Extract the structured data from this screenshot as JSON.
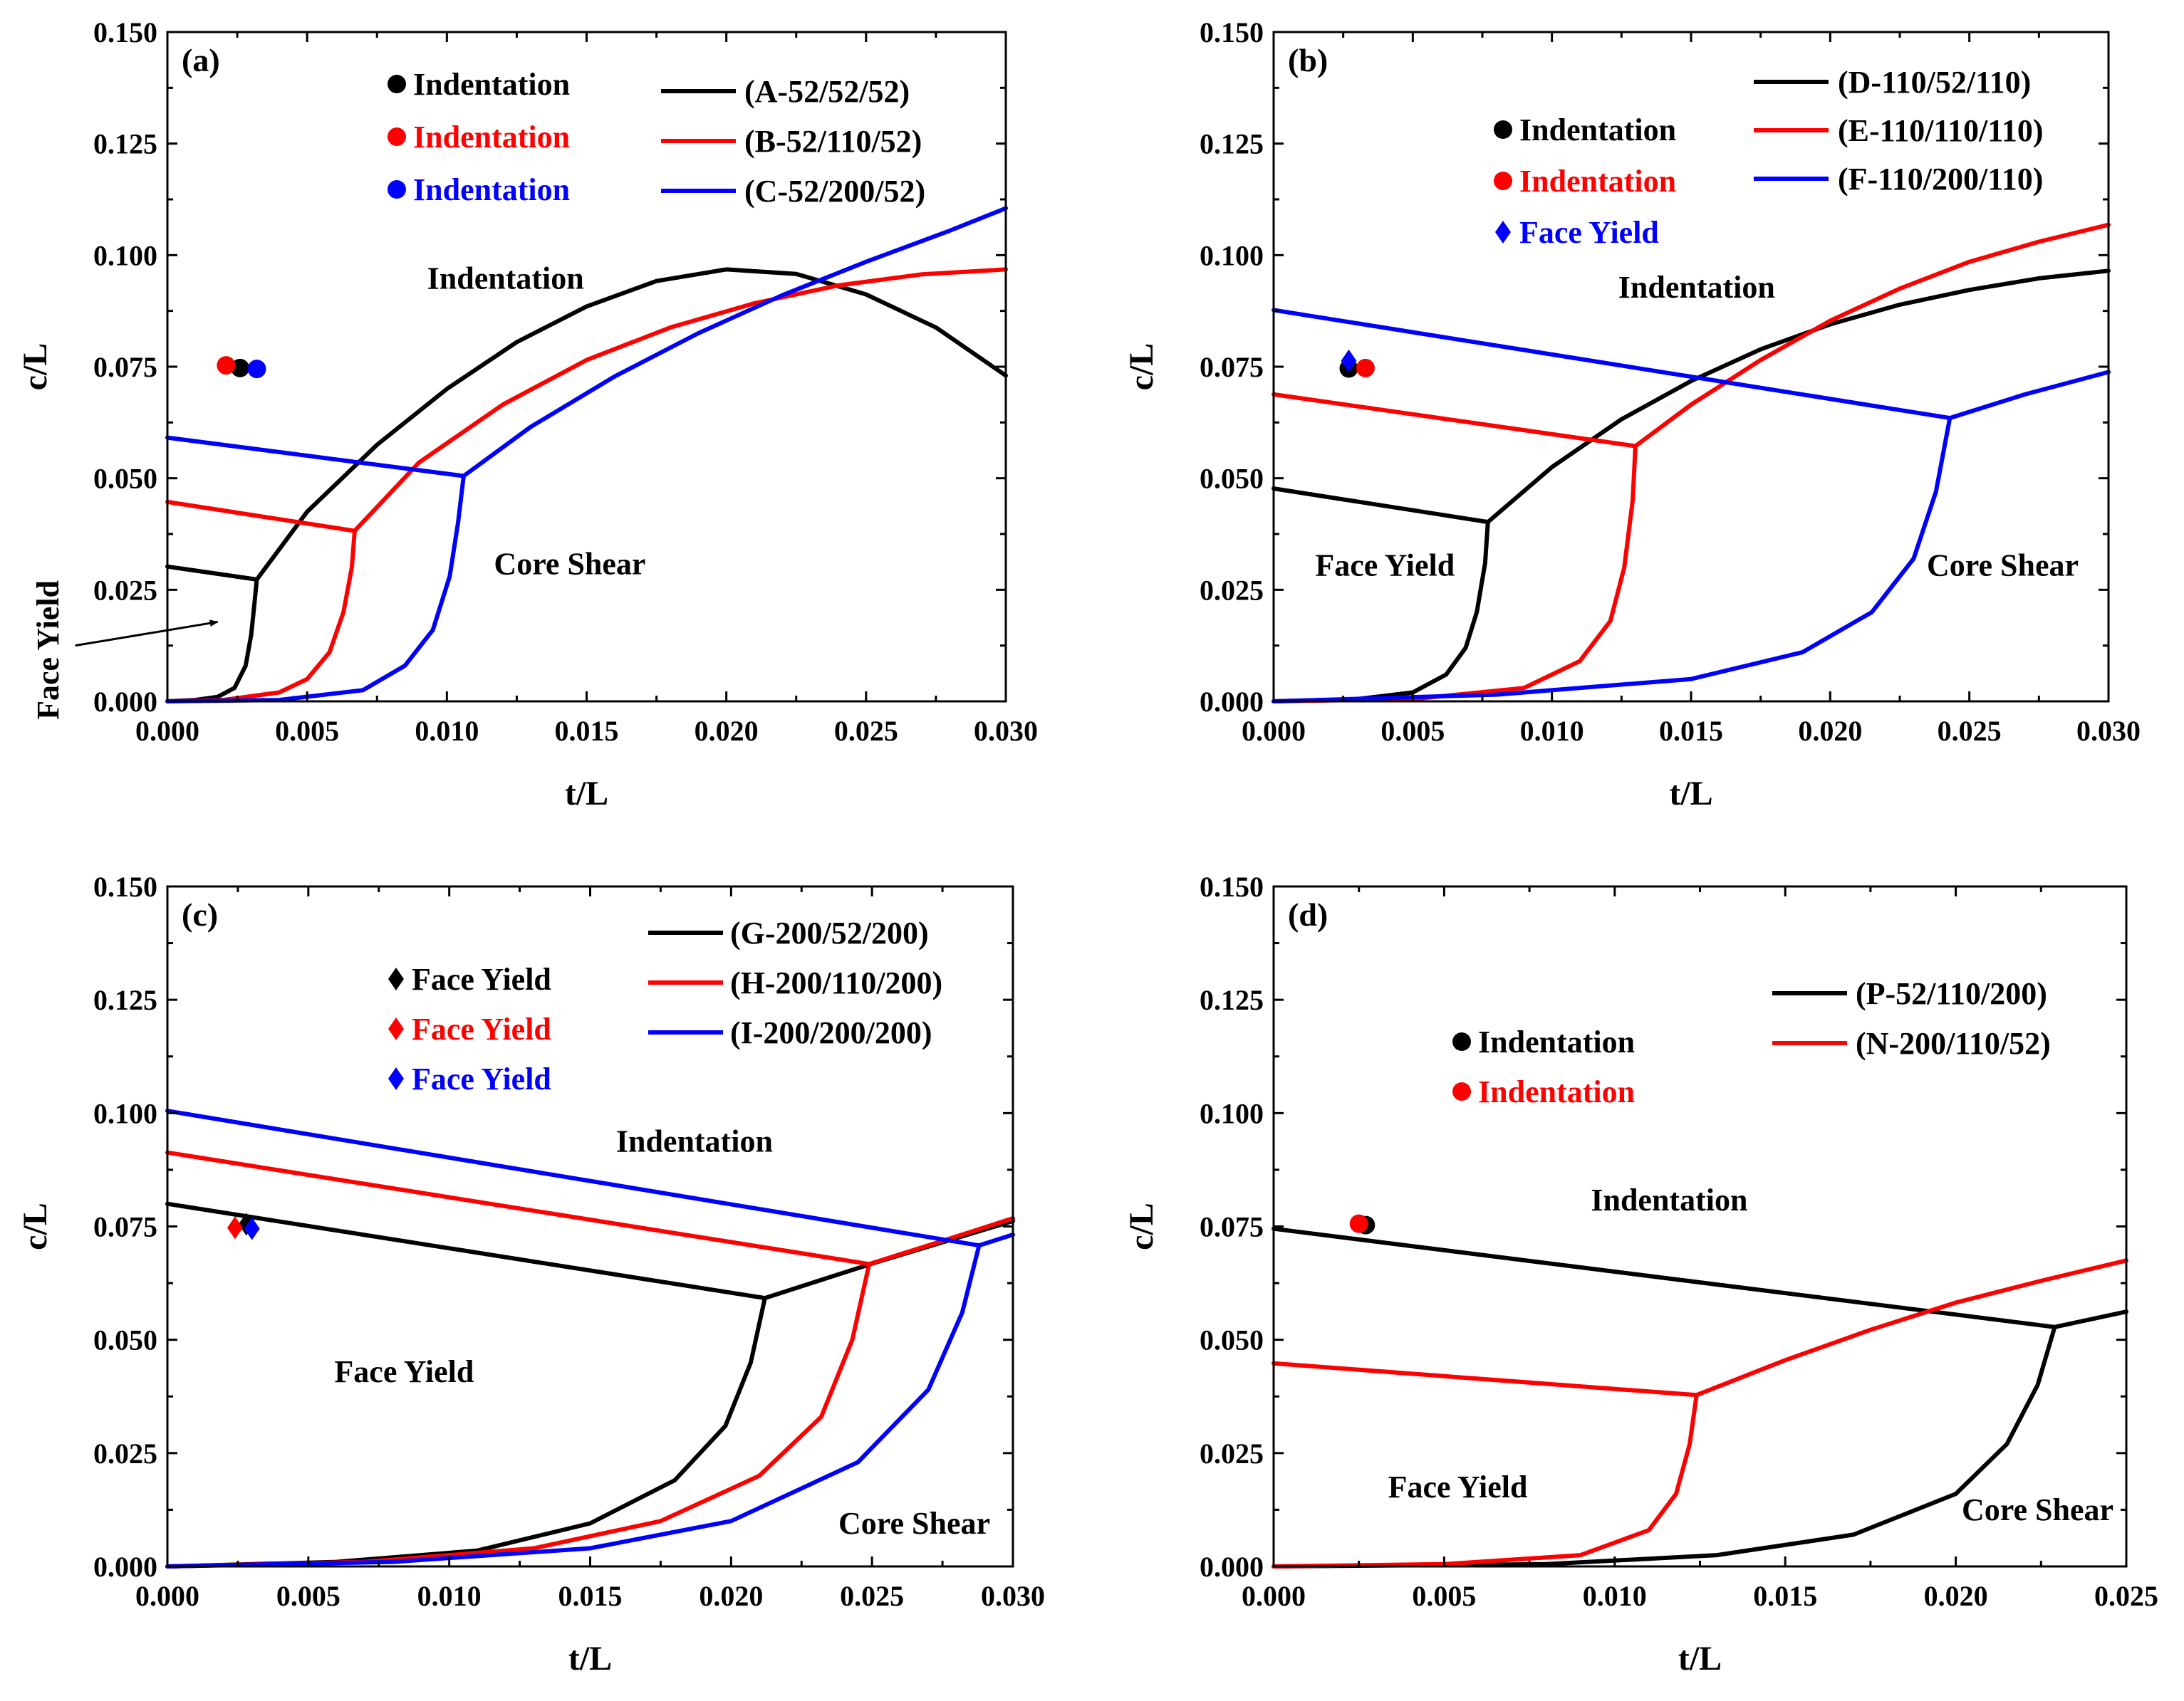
{
  "colors": {
    "black": "#000000",
    "red": "#ff0000",
    "blue": "#0000ff"
  },
  "chart_data": [
    {
      "panel": "(a)",
      "type": "line",
      "xlabel": "t/L",
      "ylabel": "c/L",
      "xlim": [
        0,
        0.03
      ],
      "ylim": [
        0,
        0.15
      ],
      "xticks": [
        "0.000",
        "0.005",
        "0.010",
        "0.015",
        "0.020",
        "0.025",
        "0.030"
      ],
      "yticks": [
        "0.000",
        "0.025",
        "0.050",
        "0.075",
        "0.100",
        "0.125",
        "0.150"
      ],
      "series": [
        {
          "name": "(A-52/52/52)",
          "color": "black",
          "segments": [
            {
              "x": [
                0,
                0.0032
              ],
              "y": [
                0.0302,
                0.0273
              ]
            },
            {
              "x": [
                0.0032,
                0.005,
                0.0075,
                0.01,
                0.0125,
                0.015,
                0.0175,
                0.02,
                0.0225,
                0.025,
                0.0275,
                0.03
              ],
              "y": [
                0.0273,
                0.0425,
                0.0575,
                0.07,
                0.0805,
                0.0885,
                0.0942,
                0.0968,
                0.0958,
                0.0912,
                0.0838,
                0.073
              ]
            },
            {
              "x": [
                0,
                0.001,
                0.0018,
                0.0024,
                0.0028,
                0.003,
                0.0031,
                0.0032
              ],
              "y": [
                0,
                0.0003,
                0.001,
                0.003,
                0.008,
                0.015,
                0.021,
                0.0273
              ]
            }
          ]
        },
        {
          "name": "(B-52/110/52)",
          "color": "red",
          "segments": [
            {
              "x": [
                0,
                0.0067
              ],
              "y": [
                0.0447,
                0.0382
              ]
            },
            {
              "x": [
                0.0067,
                0.009,
                0.012,
                0.015,
                0.018,
                0.021,
                0.024,
                0.027,
                0.03
              ],
              "y": [
                0.0382,
                0.0535,
                0.0665,
                0.0765,
                0.0838,
                0.0892,
                0.0932,
                0.0957,
                0.0968
              ]
            },
            {
              "x": [
                0,
                0.002,
                0.004,
                0.005,
                0.0058,
                0.0063,
                0.0066,
                0.0067
              ],
              "y": [
                0,
                0.0003,
                0.002,
                0.005,
                0.011,
                0.02,
                0.03,
                0.0382
              ]
            }
          ]
        },
        {
          "name": "(C-52/200/52)",
          "color": "blue",
          "segments": [
            {
              "x": [
                0,
                0.0106
              ],
              "y": [
                0.0591,
                0.0505
              ]
            },
            {
              "x": [
                0.0106,
                0.013,
                0.016,
                0.019,
                0.022,
                0.025,
                0.028,
                0.03
              ],
              "y": [
                0.0505,
                0.0615,
                0.0728,
                0.0825,
                0.091,
                0.0985,
                0.1055,
                0.1105
              ]
            },
            {
              "x": [
                0,
                0.004,
                0.007,
                0.0085,
                0.0095,
                0.0101,
                0.0104,
                0.0106
              ],
              "y": [
                0,
                0.0003,
                0.0025,
                0.008,
                0.016,
                0.028,
                0.04,
                0.0505
              ]
            }
          ]
        }
      ],
      "points": [
        {
          "label": "Indentation",
          "color": "black",
          "marker": "circle",
          "x": 0.0026,
          "y": 0.0747
        },
        {
          "label": "Indentation",
          "color": "red",
          "marker": "circle",
          "x": 0.0021,
          "y": 0.0753
        },
        {
          "label": "Indentation",
          "color": "blue",
          "marker": "circle",
          "x": 0.0032,
          "y": 0.0745
        }
      ],
      "regions": [
        {
          "text": "Indentation",
          "x": 0.0121,
          "y": 0.0925,
          "rotate": 0
        },
        {
          "text": "Core Shear",
          "x": 0.0144,
          "y": 0.0285,
          "rotate": 0
        },
        {
          "text": "Face Yield",
          "x": -0.0039,
          "y": 0.0115,
          "rotate": -90
        }
      ],
      "arrow": {
        "from": [
          -0.0033,
          0.0125
        ],
        "to": [
          0.0018,
          0.0178
        ]
      }
    },
    {
      "panel": "(b)",
      "type": "line",
      "xlabel": "t/L",
      "ylabel": "c/L",
      "xlim": [
        0,
        0.03
      ],
      "ylim": [
        0,
        0.15
      ],
      "xticks": [
        "0.000",
        "0.005",
        "0.010",
        "0.015",
        "0.020",
        "0.025",
        "0.030"
      ],
      "yticks": [
        "0.000",
        "0.025",
        "0.050",
        "0.075",
        "0.100",
        "0.125",
        "0.150"
      ],
      "series": [
        {
          "name": "(D-110/52/110)",
          "color": "black",
          "segments": [
            {
              "x": [
                0,
                0.0077
              ],
              "y": [
                0.0477,
                0.0402
              ]
            },
            {
              "x": [
                0.0077,
                0.01,
                0.0125,
                0.015,
                0.0175,
                0.02,
                0.0225,
                0.025,
                0.0275,
                0.03
              ],
              "y": [
                0.0402,
                0.0525,
                0.0632,
                0.0718,
                0.0789,
                0.0845,
                0.0889,
                0.0922,
                0.0948,
                0.0965
              ]
            },
            {
              "x": [
                0,
                0.003,
                0.005,
                0.0062,
                0.0069,
                0.0073,
                0.0076,
                0.0077
              ],
              "y": [
                0,
                0.0005,
                0.002,
                0.006,
                0.012,
                0.02,
                0.031,
                0.0402
              ]
            }
          ]
        },
        {
          "name": "(E-110/110/110)",
          "color": "red",
          "segments": [
            {
              "x": [
                0,
                0.013
              ],
              "y": [
                0.0688,
                0.0572
              ]
            },
            {
              "x": [
                0.013,
                0.015,
                0.0175,
                0.02,
                0.0225,
                0.025,
                0.0275,
                0.03
              ],
              "y": [
                0.0572,
                0.0665,
                0.0765,
                0.0853,
                0.0925,
                0.0985,
                0.103,
                0.1068
              ]
            },
            {
              "x": [
                0,
                0.005,
                0.009,
                0.011,
                0.0121,
                0.0126,
                0.0129,
                0.013
              ],
              "y": [
                0,
                0.0005,
                0.003,
                0.009,
                0.018,
                0.03,
                0.045,
                0.0572
              ]
            }
          ]
        },
        {
          "name": "(F-110/200/110)",
          "color": "blue",
          "segments": [
            {
              "x": [
                0,
                0.0243
              ],
              "y": [
                0.0877,
                0.0635
              ]
            },
            {
              "x": [
                0.0243,
                0.027,
                0.03
              ],
              "y": [
                0.0635,
                0.0688,
                0.0738
              ]
            },
            {
              "x": [
                0,
                0.008,
                0.015,
                0.019,
                0.0215,
                0.023,
                0.0238,
                0.0243
              ],
              "y": [
                0,
                0.0015,
                0.005,
                0.011,
                0.02,
                0.032,
                0.047,
                0.0635
              ]
            }
          ]
        }
      ],
      "points": [
        {
          "label": "Indentation",
          "color": "black",
          "marker": "circle",
          "x": 0.0027,
          "y": 0.0746
        },
        {
          "label": "Indentation",
          "color": "red",
          "marker": "circle",
          "x": 0.0033,
          "y": 0.0747
        },
        {
          "label": "Face Yield",
          "color": "blue",
          "marker": "diamond",
          "x": 0.0027,
          "y": 0.0763
        }
      ],
      "regions": [
        {
          "text": "Indentation",
          "x": 0.0152,
          "y": 0.0905,
          "rotate": 0
        },
        {
          "text": "Face Yield",
          "x": 0.004,
          "y": 0.0282,
          "rotate": 0
        },
        {
          "text": "Core Shear",
          "x": 0.0262,
          "y": 0.0282,
          "rotate": 0
        }
      ]
    },
    {
      "panel": "(c)",
      "type": "line",
      "xlabel": "t/L",
      "ylabel": "c/L",
      "xlim": [
        0,
        0.03
      ],
      "ylim": [
        0,
        0.15
      ],
      "xticks": [
        "0.000",
        "0.005",
        "0.010",
        "0.015",
        "0.020",
        "0.025",
        "0.030"
      ],
      "yticks": [
        "0.000",
        "0.025",
        "0.050",
        "0.075",
        "0.100",
        "0.125",
        "0.150"
      ],
      "series": [
        {
          "name": "(G-200/52/200)",
          "color": "black",
          "segments": [
            {
              "x": [
                0,
                0.0212
              ],
              "y": [
                0.08,
                0.0592
              ]
            },
            {
              "x": [
                0.0212,
                0.025,
                0.03
              ],
              "y": [
                0.0592,
                0.0668,
                0.0762
              ]
            },
            {
              "x": [
                0,
                0.006,
                0.011,
                0.015,
                0.018,
                0.0198,
                0.0207,
                0.0212
              ],
              "y": [
                0,
                0.001,
                0.0035,
                0.0095,
                0.019,
                0.031,
                0.045,
                0.0592
              ]
            }
          ]
        },
        {
          "name": "(H-200/110/200)",
          "color": "red",
          "segments": [
            {
              "x": [
                0,
                0.0249
              ],
              "y": [
                0.0913,
                0.0667
              ]
            },
            {
              "x": [
                0.0249,
                0.0275,
                0.03
              ],
              "y": [
                0.0667,
                0.0718,
                0.0768
              ]
            },
            {
              "x": [
                0,
                0.007,
                0.013,
                0.0175,
                0.021,
                0.0232,
                0.0243,
                0.0249
              ],
              "y": [
                0,
                0.001,
                0.004,
                0.01,
                0.02,
                0.033,
                0.05,
                0.0667
              ]
            }
          ]
        },
        {
          "name": "(I-200/200/200)",
          "color": "blue",
          "segments": [
            {
              "x": [
                0,
                0.0288
              ],
              "y": [
                0.1005,
                0.0708
              ]
            },
            {
              "x": [
                0.0288,
                0.03
              ],
              "y": [
                0.0708,
                0.0732
              ]
            },
            {
              "x": [
                0,
                0.008,
                0.015,
                0.02,
                0.0245,
                0.027,
                0.0282,
                0.0288
              ],
              "y": [
                0,
                0.001,
                0.004,
                0.01,
                0.023,
                0.039,
                0.056,
                0.0708
              ]
            }
          ]
        }
      ],
      "points": [
        {
          "label": "Face Yield",
          "color": "black",
          "marker": "diamond",
          "x": 0.0028,
          "y": 0.0755
        },
        {
          "label": "Face Yield",
          "color": "red",
          "marker": "diamond",
          "x": 0.0024,
          "y": 0.0747
        },
        {
          "label": "Face Yield",
          "color": "blue",
          "marker": "diamond",
          "x": 0.003,
          "y": 0.0745
        }
      ],
      "regions": [
        {
          "text": "Indentation",
          "x": 0.0187,
          "y": 0.0915,
          "rotate": 0
        },
        {
          "text": "Face Yield",
          "x": 0.0084,
          "y": 0.0407,
          "rotate": 0
        },
        {
          "text": "Core Shear",
          "x": 0.0265,
          "y": 0.0072,
          "rotate": 0
        }
      ]
    },
    {
      "panel": "(d)",
      "type": "line",
      "xlabel": "t/L",
      "ylabel": "c/L",
      "xlim": [
        0,
        0.025
      ],
      "ylim": [
        0,
        0.15
      ],
      "xticks": [
        "0.000",
        "0.005",
        "0.010",
        "0.015",
        "0.020",
        "0.025"
      ],
      "yticks": [
        "0.000",
        "0.025",
        "0.050",
        "0.075",
        "0.100",
        "0.125",
        "0.150"
      ],
      "series": [
        {
          "name": "(P-52/110/200)",
          "color": "black",
          "segments": [
            {
              "x": [
                0,
                0.0229
              ],
              "y": [
                0.0745,
                0.0528
              ]
            },
            {
              "x": [
                0.0229,
                0.025
              ],
              "y": [
                0.0528,
                0.0562
              ]
            },
            {
              "x": [
                0,
                0.008,
                0.013,
                0.017,
                0.02,
                0.0215,
                0.0224,
                0.0229
              ],
              "y": [
                0,
                0.0005,
                0.0025,
                0.007,
                0.016,
                0.027,
                0.04,
                0.0528
              ]
            }
          ]
        },
        {
          "name": "(N-200/110/52)",
          "color": "red",
          "segments": [
            {
              "x": [
                0,
                0.0124
              ],
              "y": [
                0.0448,
                0.0378
              ]
            },
            {
              "x": [
                0.0124,
                0.015,
                0.0175,
                0.02,
                0.0225,
                0.025
              ],
              "y": [
                0.0378,
                0.0455,
                0.0522,
                0.0582,
                0.063,
                0.0675
              ]
            },
            {
              "x": [
                0,
                0.005,
                0.009,
                0.011,
                0.0118,
                0.0122,
                0.0124
              ],
              "y": [
                0,
                0.0005,
                0.0025,
                0.008,
                0.016,
                0.027,
                0.0378
              ]
            }
          ]
        }
      ],
      "points": [
        {
          "label": "Indentation",
          "color": "black",
          "marker": "circle",
          "x": 0.0027,
          "y": 0.0753
        },
        {
          "label": "Indentation",
          "color": "red",
          "marker": "circle",
          "x": 0.0025,
          "y": 0.0756
        }
      ],
      "regions": [
        {
          "text": "Indentation",
          "x": 0.0116,
          "y": 0.0785,
          "rotate": 0
        },
        {
          "text": "Face Yield",
          "x": 0.0054,
          "y": 0.0152,
          "rotate": 0
        },
        {
          "text": "Core Shear",
          "x": 0.0224,
          "y": 0.0102,
          "rotate": 0
        }
      ]
    }
  ]
}
